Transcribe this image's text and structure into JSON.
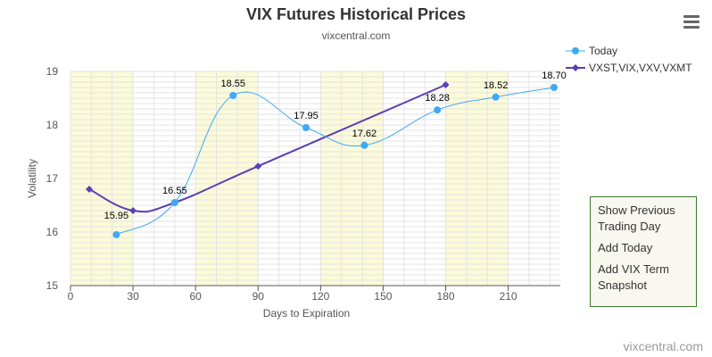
{
  "title": "VIX Futures Historical Prices",
  "subtitle": "vixcentral.com",
  "credit": "vixcentral.com",
  "menu": {
    "icon": "hamburger-menu-icon",
    "items": [
      "Show Previous Trading Day",
      "Add Today",
      "Add VIX Term Snapshot"
    ]
  },
  "colors": {
    "today": "#3fa9f5",
    "vxst": "#5b3fb4",
    "band": "#fbfbd9",
    "grid": "#e3e3e3"
  },
  "chart_data": {
    "type": "line",
    "title": "VIX Futures Historical Prices",
    "subtitle": "vixcentral.com",
    "xlabel": "Days to Expiration",
    "ylabel": "Volatility",
    "xlim": [
      0,
      235
    ],
    "ylim": [
      15,
      19
    ],
    "xticks": [
      0,
      30,
      60,
      90,
      120,
      150,
      180,
      210
    ],
    "yticks": [
      15,
      16,
      17,
      18,
      19
    ],
    "legend_position": "top-right",
    "series": [
      {
        "name": "Today",
        "color": "#3fa9f5",
        "marker": "circle",
        "x": [
          22,
          50,
          78,
          113,
          141,
          176,
          204,
          232
        ],
        "y": [
          15.95,
          16.55,
          18.55,
          17.95,
          17.62,
          18.28,
          18.52,
          18.7
        ],
        "labels": [
          "15.95",
          "16.55",
          "18.55",
          "17.95",
          "17.62",
          "18.28",
          "18.52",
          "18.70"
        ]
      },
      {
        "name": "VXST,VIX,VXV,VXMT",
        "color": "#5b3fb4",
        "marker": "diamond",
        "x": [
          9,
          30,
          50,
          90,
          180
        ],
        "y": [
          16.8,
          16.4,
          16.55,
          17.23,
          18.75
        ]
      }
    ]
  }
}
